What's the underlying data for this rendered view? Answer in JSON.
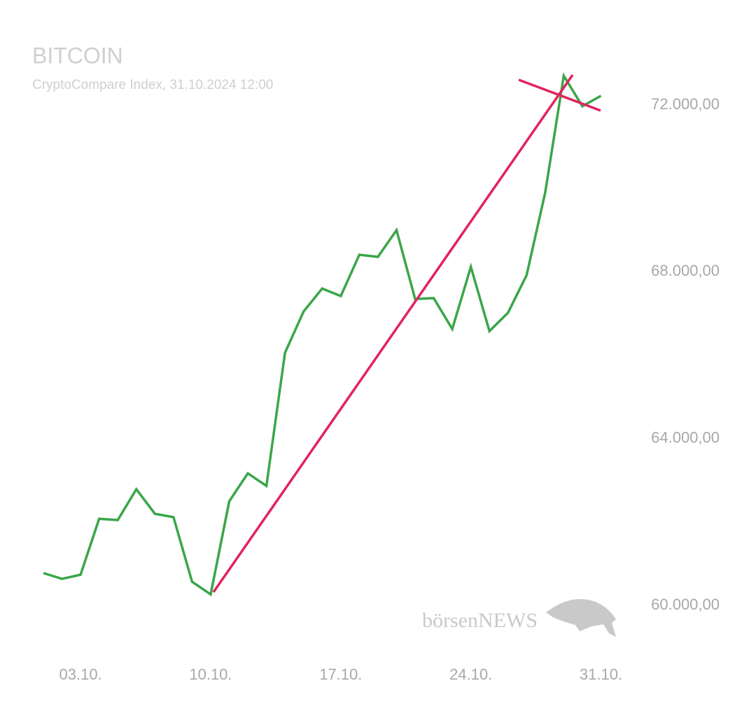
{
  "chart_data": {
    "type": "line",
    "title": "BITCOIN",
    "subtitle": "CryptoCompare Index, 31.10.2024 12:00",
    "watermark": "börsenNEWS",
    "categories": [
      null,
      null,
      "03.10.",
      null,
      null,
      null,
      null,
      null,
      null,
      "10.10.",
      null,
      null,
      null,
      null,
      null,
      null,
      "17.10.",
      null,
      null,
      null,
      null,
      null,
      null,
      "24.10.",
      null,
      null,
      null,
      null,
      null,
      null,
      "31.10."
    ],
    "series": [
      {
        "color": "#3aa64a",
        "values": [
          60780,
          60640,
          60740,
          62080,
          62050,
          62790,
          62200,
          62120,
          60570,
          60270,
          62500,
          63170,
          62870,
          66060,
          67050,
          67600,
          67420,
          68410,
          68360,
          69000,
          67350,
          67370,
          66630,
          68120,
          66580,
          67020,
          67920,
          69900,
          72700,
          71970,
          72220
        ]
      }
    ],
    "ylim": [
      58900,
      73500
    ],
    "yticks": [
      {
        "value": 60000,
        "label": "60.000,00"
      },
      {
        "value": 64000,
        "label": "64.000,00"
      },
      {
        "value": 68000,
        "label": "68.000,00"
      },
      {
        "value": 72000,
        "label": "72.000,00"
      }
    ],
    "grid": false
  }
}
